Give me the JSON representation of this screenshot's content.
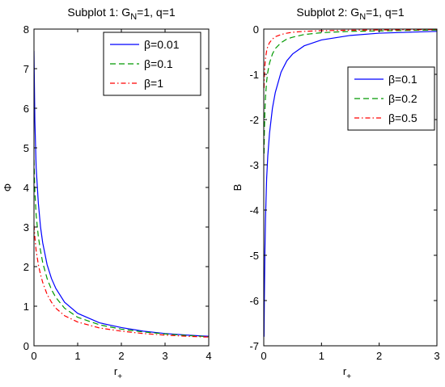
{
  "colors": {
    "blue": "#0000ff",
    "green": "#009900",
    "red": "#ff0000"
  },
  "chart_data": [
    {
      "type": "line",
      "title": {
        "prefix": "Subplot 1: G",
        "sub": "N",
        "suffix": "=1, q=1"
      },
      "xlabel": {
        "main": "r",
        "sub": "+"
      },
      "ylabel": "Φ",
      "xlim": [
        0,
        4
      ],
      "ylim": [
        0,
        8
      ],
      "xticks": [
        "0",
        "1",
        "2",
        "3",
        "4"
      ],
      "yticks": [
        "0",
        "1",
        "2",
        "3",
        "4",
        "5",
        "6",
        "7",
        "8"
      ],
      "legend_position": "top-right",
      "series": [
        {
          "name": "β=0.01",
          "color": "blue",
          "style": "solid",
          "x": [
            0.0,
            0.02,
            0.05,
            0.1,
            0.15,
            0.2,
            0.3,
            0.4,
            0.5,
            0.7,
            1.0,
            1.5,
            2.0,
            2.5,
            3.0,
            3.5,
            4.0
          ],
          "y": [
            7.45,
            5.7,
            4.5,
            3.6,
            3.0,
            2.6,
            2.05,
            1.7,
            1.45,
            1.1,
            0.82,
            0.58,
            0.46,
            0.37,
            0.31,
            0.27,
            0.24
          ]
        },
        {
          "name": "β=0.1",
          "color": "green",
          "style": "dashed",
          "x": [
            0.0,
            0.02,
            0.05,
            0.1,
            0.15,
            0.2,
            0.3,
            0.4,
            0.5,
            0.7,
            1.0,
            1.5,
            2.0,
            2.5,
            3.0,
            3.5,
            4.0
          ],
          "y": [
            4.7,
            3.9,
            3.3,
            2.75,
            2.4,
            2.1,
            1.7,
            1.42,
            1.22,
            0.95,
            0.72,
            0.53,
            0.42,
            0.35,
            0.3,
            0.26,
            0.23
          ]
        },
        {
          "name": "β=1",
          "color": "red",
          "style": "dashdot",
          "x": [
            0.0,
            0.02,
            0.05,
            0.1,
            0.15,
            0.2,
            0.3,
            0.4,
            0.5,
            0.7,
            1.0,
            1.5,
            2.0,
            2.5,
            3.0,
            3.5,
            4.0
          ],
          "y": [
            3.05,
            2.75,
            2.4,
            2.05,
            1.8,
            1.6,
            1.3,
            1.1,
            0.95,
            0.76,
            0.6,
            0.45,
            0.37,
            0.31,
            0.27,
            0.24,
            0.22
          ]
        }
      ]
    },
    {
      "type": "line",
      "title": {
        "prefix": "Subplot 2: G",
        "sub": "N",
        "suffix": "=1, q=1"
      },
      "xlabel": {
        "main": "r",
        "sub": "+"
      },
      "ylabel": "B",
      "xlim": [
        0,
        3
      ],
      "ylim": [
        -7,
        0
      ],
      "xticks": [
        "0",
        "1",
        "2",
        "3"
      ],
      "yticks": [
        "-7",
        "-6",
        "-5",
        "-4",
        "-3",
        "-2",
        "-1",
        "0"
      ],
      "legend_position": "center-right",
      "series": [
        {
          "name": "β=0.1",
          "color": "blue",
          "style": "solid",
          "x": [
            0.005,
            0.01,
            0.02,
            0.03,
            0.05,
            0.07,
            0.1,
            0.15,
            0.2,
            0.3,
            0.4,
            0.5,
            0.7,
            1.0,
            1.5,
            2.0,
            2.5,
            3.0
          ],
          "y": [
            -6.8,
            -6.0,
            -4.9,
            -4.2,
            -3.3,
            -2.8,
            -2.3,
            -1.75,
            -1.4,
            -0.95,
            -0.7,
            -0.55,
            -0.37,
            -0.24,
            -0.14,
            -0.09,
            -0.07,
            -0.05
          ]
        },
        {
          "name": "β=0.2",
          "color": "green",
          "style": "dashed",
          "x": [
            0.005,
            0.01,
            0.02,
            0.03,
            0.05,
            0.07,
            0.1,
            0.15,
            0.2,
            0.3,
            0.4,
            0.5,
            0.7,
            1.0,
            1.5,
            2.0,
            2.5,
            3.0
          ],
          "y": [
            -2.75,
            -2.3,
            -1.8,
            -1.5,
            -1.15,
            -0.95,
            -0.75,
            -0.55,
            -0.43,
            -0.3,
            -0.22,
            -0.18,
            -0.12,
            -0.08,
            -0.05,
            -0.04,
            -0.03,
            -0.02
          ]
        },
        {
          "name": "β=0.5",
          "color": "red",
          "style": "dashdot",
          "x": [
            0.005,
            0.01,
            0.02,
            0.03,
            0.05,
            0.07,
            0.1,
            0.15,
            0.2,
            0.3,
            0.4,
            0.5,
            0.7,
            1.0,
            1.5,
            2.0,
            2.5,
            3.0
          ],
          "y": [
            -1.3,
            -1.05,
            -0.8,
            -0.65,
            -0.48,
            -0.38,
            -0.3,
            -0.22,
            -0.17,
            -0.12,
            -0.09,
            -0.07,
            -0.05,
            -0.035,
            -0.025,
            -0.02,
            -0.015,
            -0.01
          ]
        }
      ]
    }
  ]
}
